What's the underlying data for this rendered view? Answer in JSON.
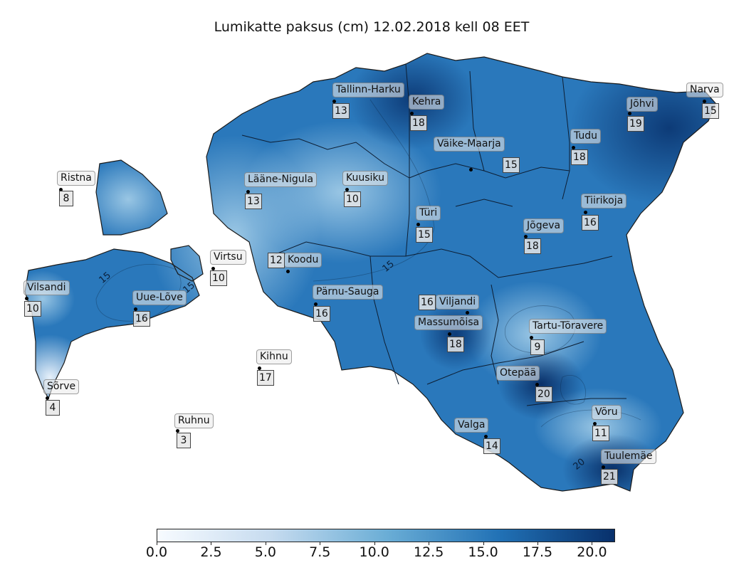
{
  "title": "Lumikatte paksus (cm) 12.02.2018 kell 08 EET",
  "colorbar": {
    "min": 0.0,
    "max": 21.0,
    "ticks": [
      "0.0",
      "2.5",
      "5.0",
      "7.5",
      "10.0",
      "12.5",
      "15.0",
      "17.5",
      "20.0"
    ],
    "colors": [
      "#f7fbff",
      "#c6dbef",
      "#6baed6",
      "#2171b5",
      "#08306b"
    ]
  },
  "contour_labels": [
    "15",
    "15",
    "15",
    "20"
  ],
  "stations": [
    {
      "name": "Tallinn-Harku",
      "value": "13"
    },
    {
      "name": "Kehra",
      "value": "18"
    },
    {
      "name": "Narva",
      "value": "15"
    },
    {
      "name": "Jõhvi",
      "value": "19"
    },
    {
      "name": "Tudu",
      "value": "18"
    },
    {
      "name": "Väike-Maarja",
      "value": "15"
    },
    {
      "name": "Ristna",
      "value": "8"
    },
    {
      "name": "Lääne-Nigula",
      "value": "13"
    },
    {
      "name": "Kuusiku",
      "value": "10"
    },
    {
      "name": "Tiirikoja",
      "value": "16"
    },
    {
      "name": "Türi",
      "value": "15"
    },
    {
      "name": "Jõgeva",
      "value": "18"
    },
    {
      "name": "Virtsu",
      "value": "10"
    },
    {
      "name": "Koodu",
      "value": "12"
    },
    {
      "name": "Vilsandi",
      "value": "10"
    },
    {
      "name": "Uue-Lõve",
      "value": "16"
    },
    {
      "name": "Pärnu-Sauga",
      "value": "16"
    },
    {
      "name": "Viljandi",
      "value": "16"
    },
    {
      "name": "Massumõisa",
      "value": "18"
    },
    {
      "name": "Tartu-Tõravere",
      "value": "9"
    },
    {
      "name": "Kihnu",
      "value": "17"
    },
    {
      "name": "Otepää",
      "value": "20"
    },
    {
      "name": "Sõrve",
      "value": "4"
    },
    {
      "name": "Võru",
      "value": "11"
    },
    {
      "name": "Ruhnu",
      "value": "3"
    },
    {
      "name": "Valga",
      "value": "14"
    },
    {
      "name": "Tuulemäe",
      "value": "21"
    }
  ]
}
